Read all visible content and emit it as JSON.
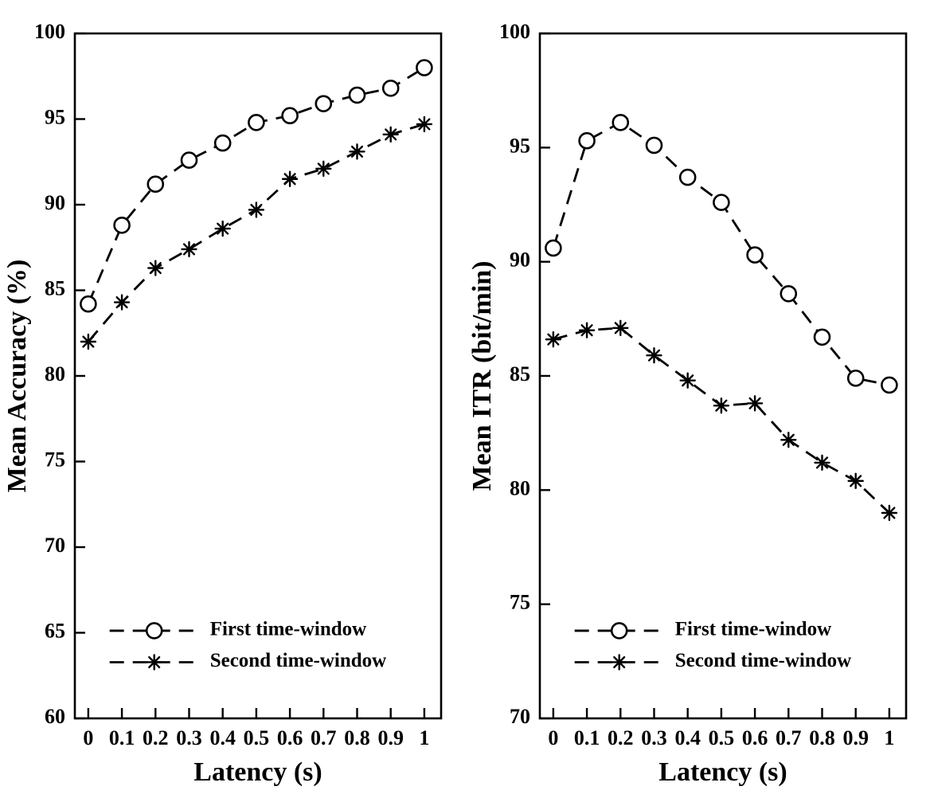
{
  "page": {
    "background": "#ffffff",
    "line_color": "#000000"
  },
  "chart_data": [
    {
      "type": "line",
      "title": "",
      "xlabel": "Latency (s)",
      "ylabel": "Mean Accuracy (%)",
      "x": [
        0,
        0.1,
        0.2,
        0.3,
        0.4,
        0.5,
        0.6,
        0.7,
        0.8,
        0.9,
        1
      ],
      "xtick_labels": [
        "0",
        "0.1",
        "0.2",
        "0.3",
        "0.4",
        "0.5",
        "0.6",
        "0.7",
        "0.8",
        "0.9",
        "1"
      ],
      "xlim": [
        -0.04,
        1.05
      ],
      "ylim": [
        60,
        100
      ],
      "yticks": [
        60,
        65,
        70,
        75,
        80,
        85,
        90,
        95,
        100
      ],
      "grid": false,
      "legend_position": "bottom-left",
      "series": [
        {
          "name": "First time-window",
          "marker": "circle",
          "linestyle": "dashed",
          "color": "#000000",
          "values": [
            84.2,
            88.8,
            91.2,
            92.6,
            93.6,
            94.8,
            95.2,
            95.9,
            96.4,
            96.8,
            98.0
          ]
        },
        {
          "name": "Second time-window",
          "marker": "asterisk",
          "linestyle": "dashed",
          "color": "#000000",
          "values": [
            82.0,
            84.3,
            86.3,
            87.4,
            88.6,
            89.7,
            91.5,
            92.1,
            93.1,
            94.1,
            94.7
          ]
        }
      ]
    },
    {
      "type": "line",
      "title": "",
      "xlabel": "Latency (s)",
      "ylabel": "Mean ITR (bit/min)",
      "x": [
        0,
        0.1,
        0.2,
        0.3,
        0.4,
        0.5,
        0.6,
        0.7,
        0.8,
        0.9,
        1
      ],
      "xtick_labels": [
        "0",
        "0.1",
        "0.2",
        "0.3",
        "0.4",
        "0.5",
        "0.6",
        "0.7",
        "0.8",
        "0.9",
        "1"
      ],
      "xlim": [
        -0.04,
        1.05
      ],
      "ylim": [
        70,
        100
      ],
      "yticks": [
        70,
        75,
        80,
        85,
        90,
        95,
        100
      ],
      "grid": false,
      "legend_position": "bottom-left",
      "series": [
        {
          "name": "First time-window",
          "marker": "circle",
          "linestyle": "dashed",
          "color": "#000000",
          "values": [
            90.6,
            95.3,
            96.1,
            95.1,
            93.7,
            92.6,
            90.3,
            88.6,
            86.7,
            84.9,
            84.6
          ]
        },
        {
          "name": "Second time-window",
          "marker": "asterisk",
          "linestyle": "dashed",
          "color": "#000000",
          "values": [
            86.6,
            87.0,
            87.1,
            85.9,
            84.8,
            83.7,
            83.8,
            82.2,
            81.2,
            80.4,
            79.0
          ]
        }
      ]
    }
  ]
}
